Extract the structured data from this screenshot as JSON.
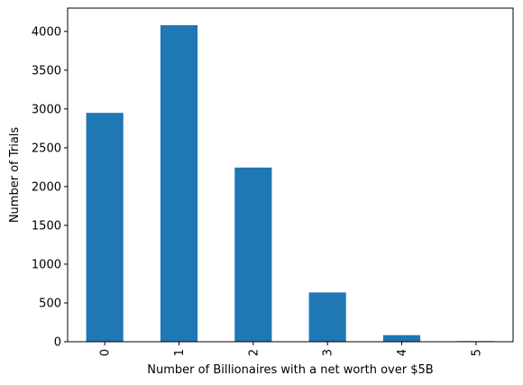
{
  "chart_data": {
    "type": "bar",
    "categories": [
      "0",
      "1",
      "2",
      "3",
      "4",
      "5"
    ],
    "values": [
      2950,
      4080,
      2245,
      635,
      85,
      8
    ],
    "xlabel": "Number of Billionaires with a net worth over $5B",
    "ylabel": "Number of Trials",
    "ylim": [
      0,
      4300
    ],
    "yticks": [
      "0",
      "500",
      "1000",
      "1500",
      "2000",
      "2500",
      "3000",
      "3500",
      "4000"
    ],
    "ytick_values": [
      0,
      500,
      1000,
      1500,
      2000,
      2500,
      3000,
      3500,
      4000
    ],
    "xtick_rotation": "vertical",
    "grid": false,
    "legend": "none",
    "bar_color": "#1f77b4"
  }
}
